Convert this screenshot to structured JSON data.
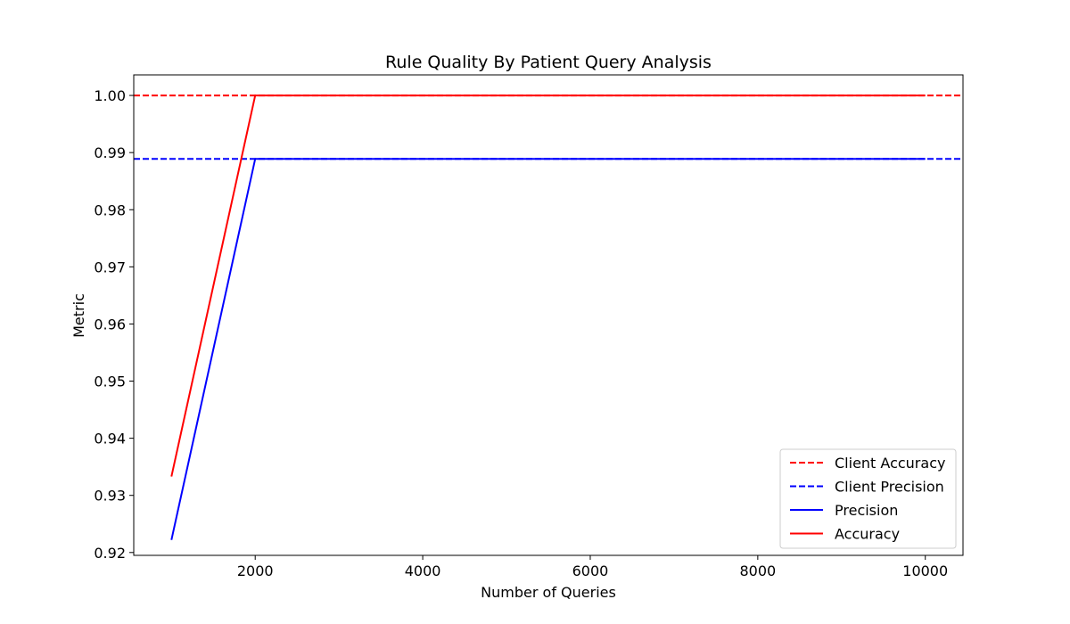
{
  "chart_data": {
    "type": "line",
    "title": "Rule Quality By Patient Query Analysis",
    "xlabel": "Number of Queries",
    "ylabel": "Metric",
    "xlim": [
      550,
      10450
    ],
    "ylim": [
      0.9195,
      1.0036
    ],
    "x_ticks": [
      2000,
      4000,
      6000,
      8000,
      10000
    ],
    "y_ticks": [
      0.92,
      0.93,
      0.94,
      0.95,
      0.96,
      0.97,
      0.98,
      0.99,
      1.0
    ],
    "y_tick_decimals": 2,
    "grid": false,
    "legend_position": "lower-right",
    "series": [
      {
        "name": "Client Accuracy",
        "kind": "hline",
        "y": 1.0,
        "color": "#ff0000",
        "dash": true
      },
      {
        "name": "Client Precision",
        "kind": "hline",
        "y": 0.9889,
        "color": "#0000ff",
        "dash": true
      },
      {
        "name": "Precision",
        "kind": "line",
        "color": "#0000ff",
        "dash": false,
        "x": [
          1000,
          2000,
          3000,
          4000,
          5000,
          6000,
          7000,
          8000,
          9000,
          10000
        ],
        "y": [
          0.9222,
          0.9889,
          0.9889,
          0.9889,
          0.9889,
          0.9889,
          0.9889,
          0.9889,
          0.9889,
          0.9889
        ]
      },
      {
        "name": "Accuracy",
        "kind": "line",
        "color": "#ff0000",
        "dash": false,
        "x": [
          1000,
          2000,
          3000,
          4000,
          5000,
          6000,
          7000,
          8000,
          9000,
          10000
        ],
        "y": [
          0.9333,
          1.0,
          1.0,
          1.0,
          1.0,
          1.0,
          1.0,
          1.0,
          1.0,
          1.0
        ]
      }
    ]
  }
}
